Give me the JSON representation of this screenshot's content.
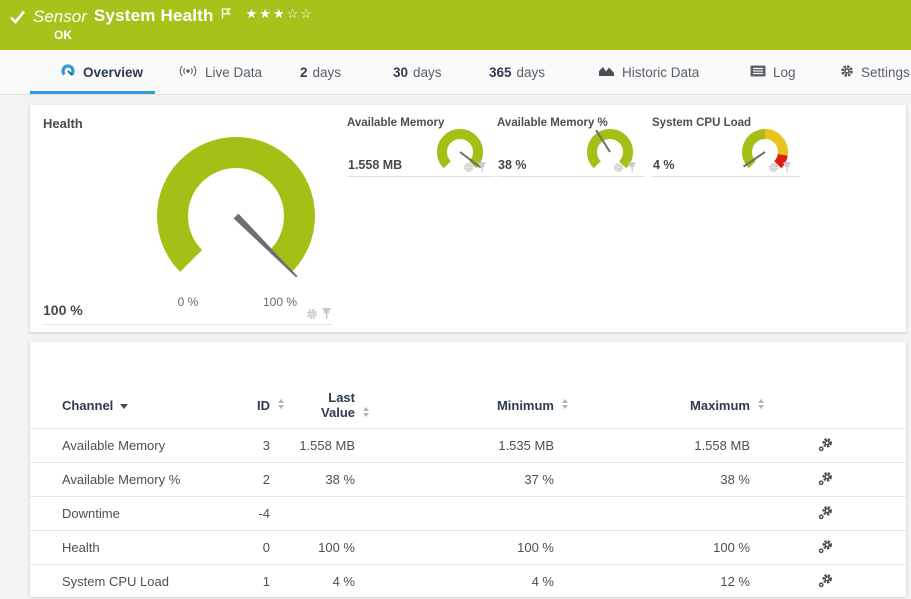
{
  "header": {
    "type_label": "Sensor",
    "title": "System Health",
    "status": "OK",
    "rating": "★★★☆☆",
    "rating_filled": 3,
    "rating_total": 5
  },
  "tabs": {
    "overview": "Overview",
    "live_data": "Live Data",
    "d2_num": "2",
    "d2_unit": "days",
    "d30_num": "30",
    "d30_unit": "days",
    "d365_num": "365",
    "d365_unit": "days",
    "historic": "Historic Data",
    "log": "Log",
    "settings": "Settings"
  },
  "gauges": {
    "health": {
      "title": "Health",
      "value": "100 %",
      "scale_min": "0 %",
      "scale_max": "100 %",
      "percent": 100
    },
    "available_memory": {
      "title": "Available Memory",
      "value": "1.558 MB",
      "percent": 97
    },
    "available_memory_pct": {
      "title": "Available Memory %",
      "value": "38 %",
      "percent": 38
    },
    "system_cpu_load": {
      "title": "System CPU Load",
      "value": "4 %",
      "percent": 4
    }
  },
  "table": {
    "headers": {
      "channel": "Channel",
      "id": "ID",
      "last_line1": "Last",
      "last_line2": "Value",
      "min": "Minimum",
      "max": "Maximum"
    },
    "rows": [
      {
        "channel": "Available Memory",
        "id": "3",
        "last": "1.558 MB",
        "min": "1.535 MB",
        "max": "1.558 MB"
      },
      {
        "channel": "Available Memory %",
        "id": "2",
        "last": "38 %",
        "min": "37 %",
        "max": "38 %"
      },
      {
        "channel": "Downtime",
        "id": "-4",
        "last": "",
        "min": "",
        "max": ""
      },
      {
        "channel": "Health",
        "id": "0",
        "last": "100 %",
        "min": "100 %",
        "max": "100 %"
      },
      {
        "channel": "System CPU Load",
        "id": "1",
        "last": "4 %",
        "min": "4 %",
        "max": "12 %"
      }
    ]
  },
  "colors": {
    "brand_green": "#a9c21b",
    "gauge_green": "#a6bf17",
    "gauge_yellow": "#e8c21d",
    "gauge_red": "#dd1f10",
    "accent_blue": "#2e9bd6",
    "needle_grey": "#6f6f6f"
  }
}
